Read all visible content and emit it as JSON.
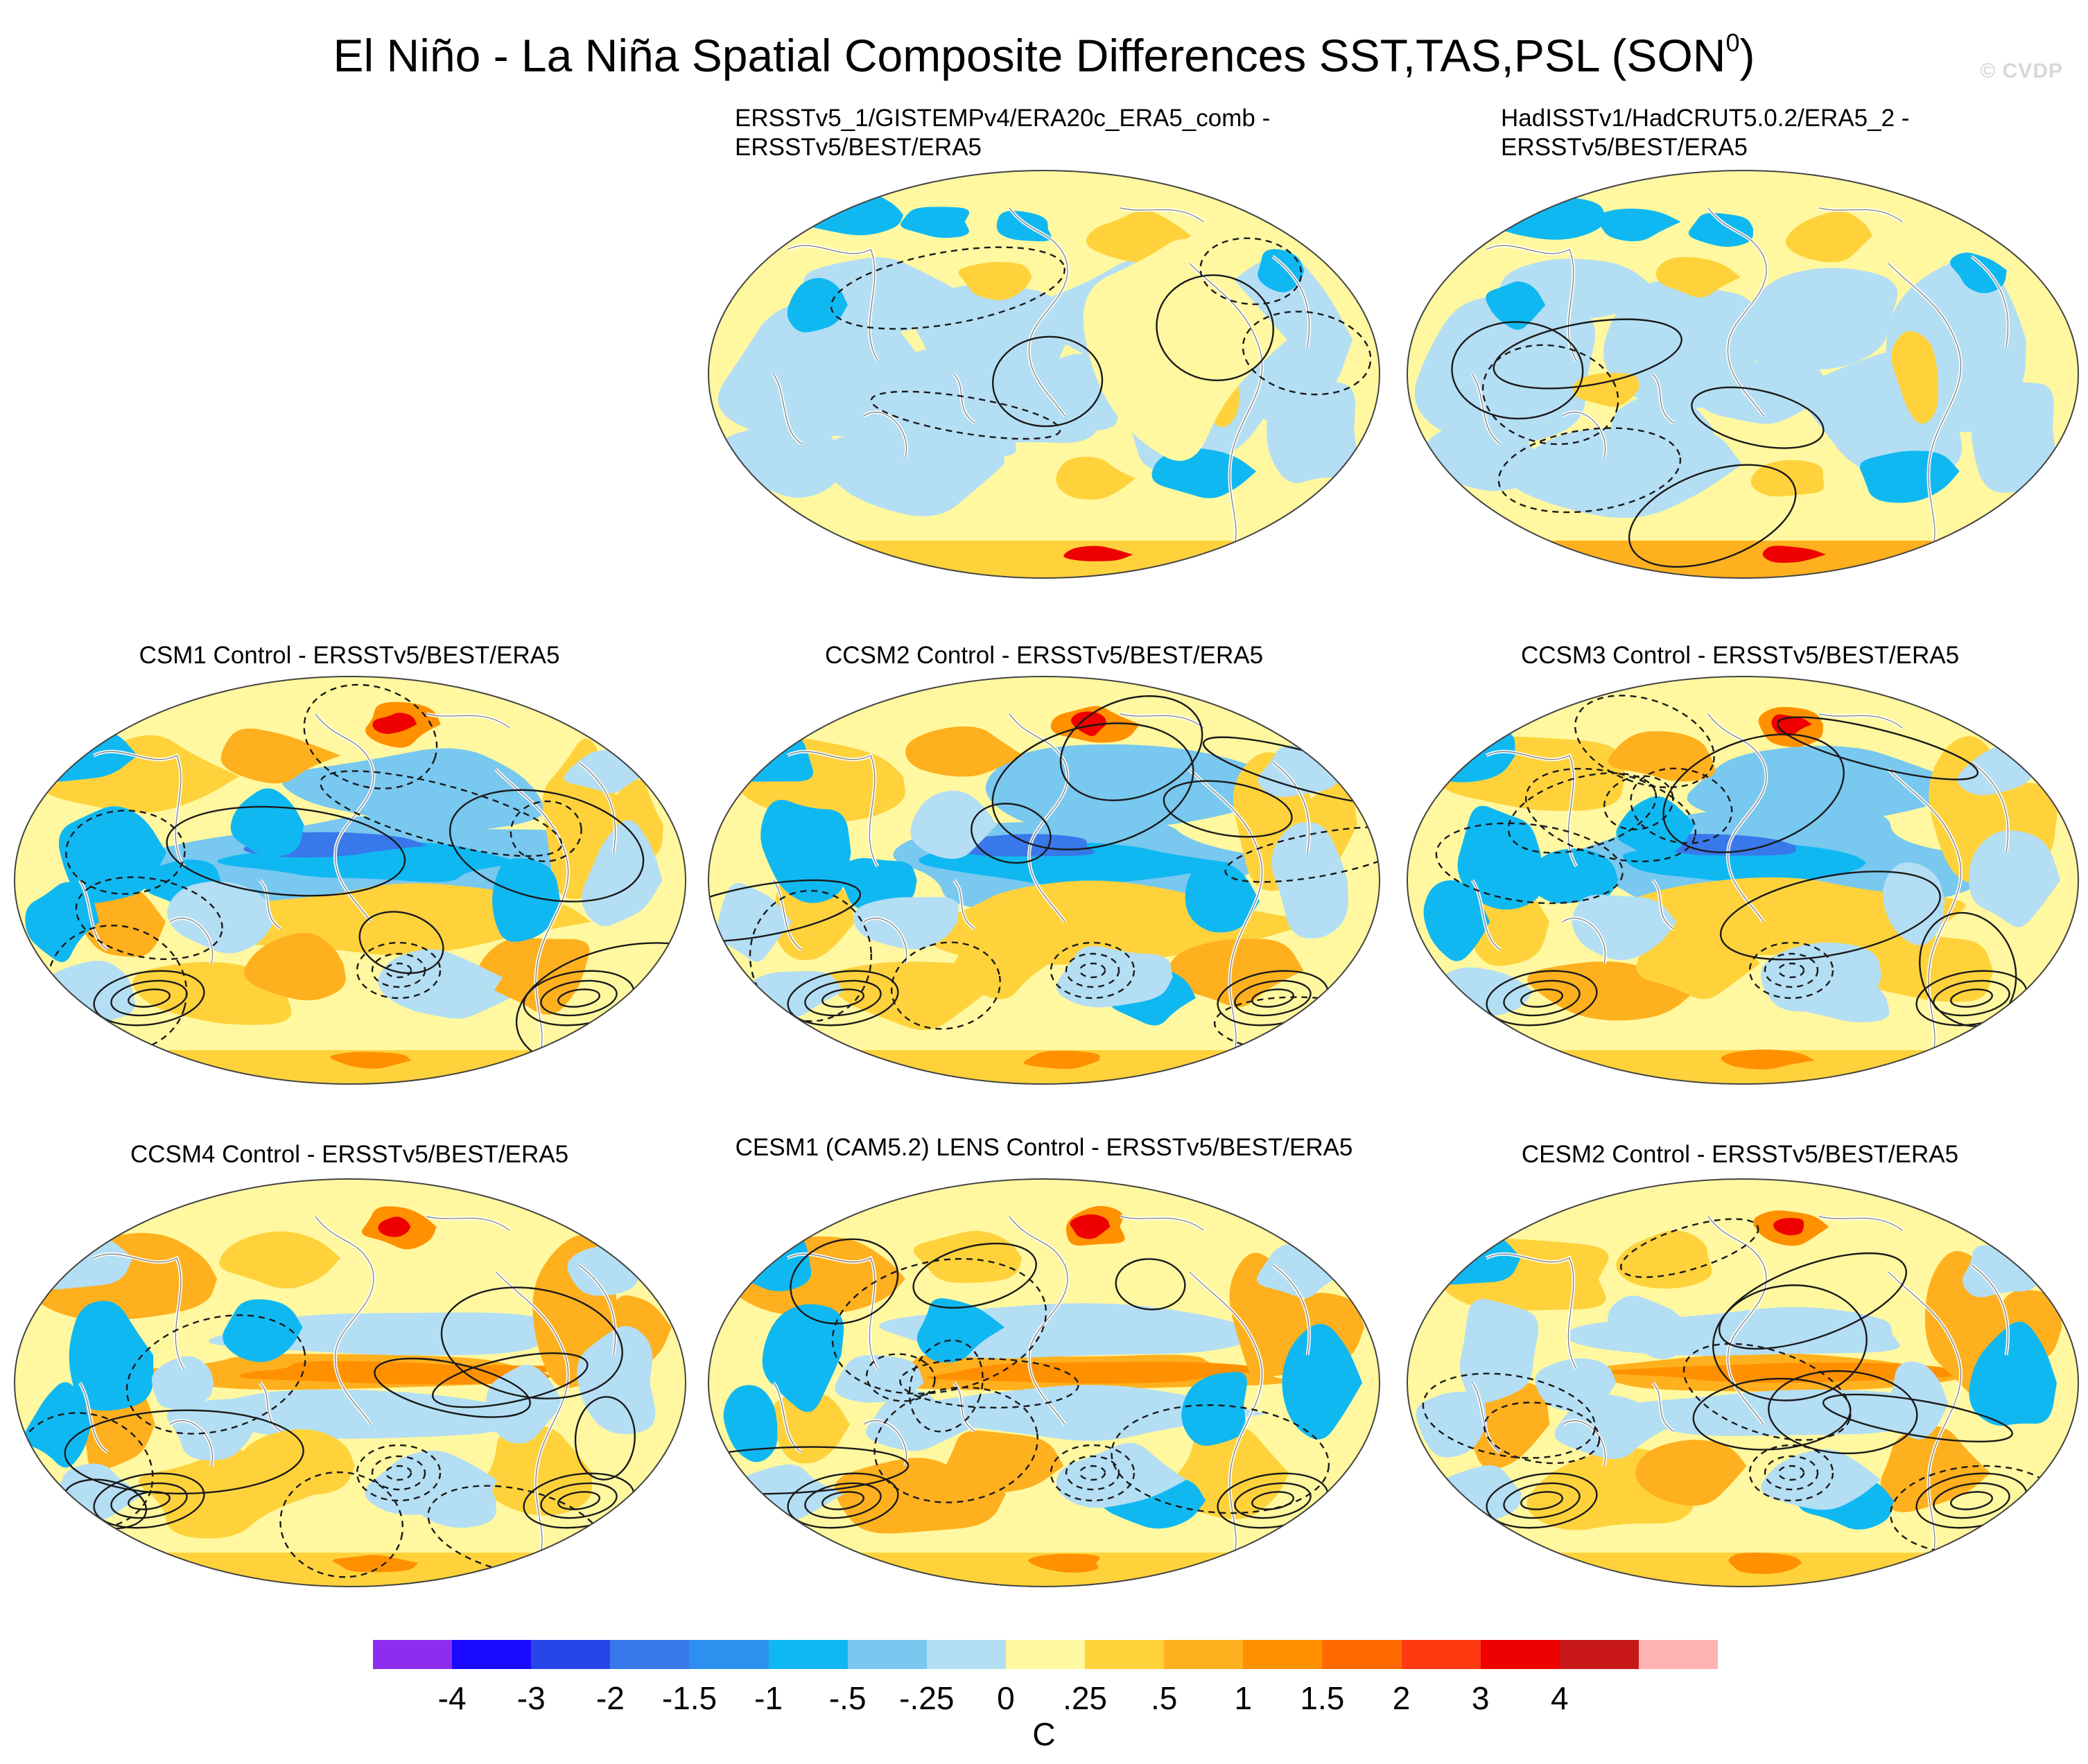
{
  "title": {
    "text": "El Niño - La Niña Spatial Composite Differences SST,TAS,PSL (SON",
    "superscript": "0",
    "close": ")"
  },
  "watermark": "© CVDP",
  "panels": [
    {
      "title_line1": "ERSSTv5_1/GISTEMPv4/ERA20c_ERA5_comb -",
      "title_line2": "ERSSTv5/BEST/ERA5",
      "pattern": "obs_a"
    },
    {
      "title_line1": "HadISSTv1/HadCRUT5.0.2/ERA5_2 -",
      "title_line2": "ERSSTv5/BEST/ERA5",
      "pattern": "obs_b"
    },
    {
      "title_line1": "CSM1 Control - ERSSTv5/BEST/ERA5",
      "title_line2": "",
      "pattern": "model_cold"
    },
    {
      "title_line1": "CCSM2 Control - ERSSTv5/BEST/ERA5",
      "title_line2": "",
      "pattern": "model_cold"
    },
    {
      "title_line1": "CCSM3 Control - ERSSTv5/BEST/ERA5",
      "title_line2": "",
      "pattern": "model_cold"
    },
    {
      "title_line1": "CCSM4 Control - ERSSTv5/BEST/ERA5",
      "title_line2": "",
      "pattern": "model_warm"
    },
    {
      "title_line1": "CESM1 (CAM5.2) LENS Control - ERSSTv5/BEST/ERA5",
      "title_line2": "",
      "pattern": "model_warm"
    },
    {
      "title_line1": "CESM2 Control - ERSSTv5/BEST/ERA5",
      "title_line2": "",
      "pattern": "model_warm"
    }
  ],
  "colorbar": {
    "colors": [
      "#8c2ef0",
      "#1a0aff",
      "#2746e8",
      "#3878ea",
      "#2b90ee",
      "#10b8f2",
      "#78c8f0",
      "#b4def4",
      "#fff8a0",
      "#ffd23c",
      "#ffb01e",
      "#ff9000",
      "#ff6a00",
      "#ff3a10",
      "#ee0000",
      "#c81818",
      "#ffb4b4"
    ],
    "labels": [
      "-4",
      "-3",
      "-2",
      "-1.5",
      "-1",
      "-.5",
      "-.25",
      "0",
      ".25",
      ".5",
      "1",
      "1.5",
      "2",
      "3",
      "4"
    ],
    "units": "C"
  }
}
